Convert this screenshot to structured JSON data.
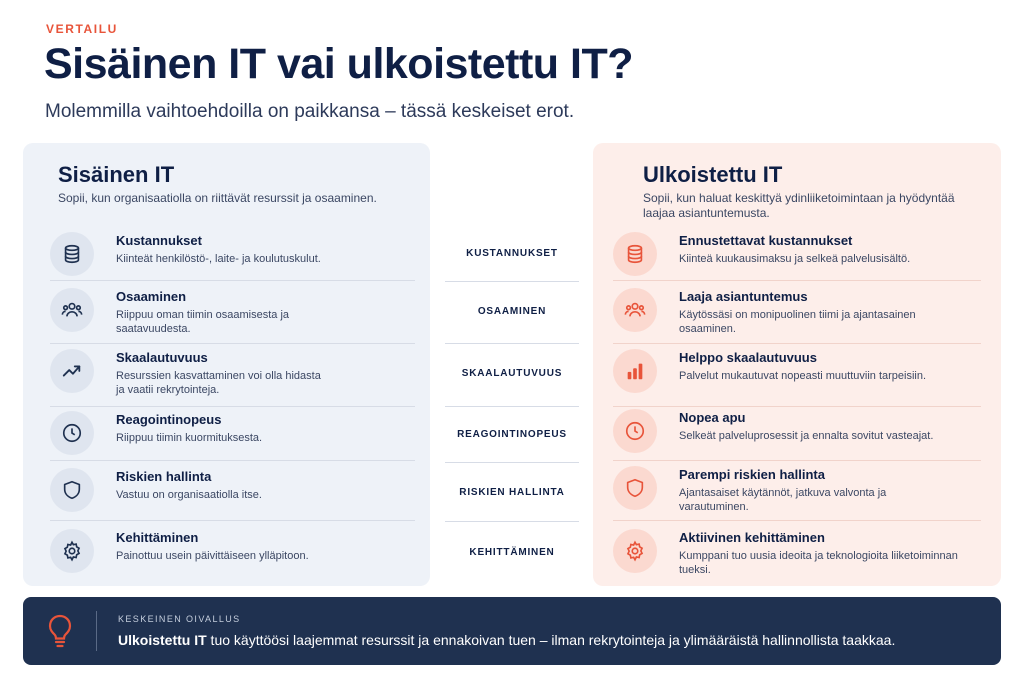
{
  "header": {
    "eyebrow": "VERTAILU",
    "title": "Sisäinen IT vai ulkoistettu IT?",
    "subtitle": "Molemmilla vaihtoehdoilla on paikkansa – tässä keskeiset erot."
  },
  "colors": {
    "accent": "#e8543a",
    "navy": "#0f1f45",
    "left_bg": "#eef2f8",
    "right_bg": "#fdeeea",
    "insight_bg": "#1f3150"
  },
  "left": {
    "title": "Sisäinen IT",
    "description": "Sopii, kun organisaatiolla on riittävät resurssit ja osaaminen.",
    "items": [
      {
        "icon": "database-icon",
        "title": "Kustannukset",
        "desc": "Kiinteät henkilöstö-, laite- ja koulutuskulut."
      },
      {
        "icon": "users-icon",
        "title": "Osaaminen",
        "desc": "Riippuu oman tiimin osaamisesta ja saatavuudesta."
      },
      {
        "icon": "trend-line-icon",
        "title": "Skaalautuvuus",
        "desc": "Resurssien kasvattaminen voi olla hidasta ja vaatii rekrytointeja."
      },
      {
        "icon": "clock-icon",
        "title": "Reagointinopeus",
        "desc": "Riippuu tiimin kuormituksesta."
      },
      {
        "icon": "shield-icon",
        "title": "Riskien hallinta",
        "desc": "Vastuu on organisaatiolla itse."
      },
      {
        "icon": "gear-icon",
        "title": "Kehittäminen",
        "desc": "Painottuu usein päivittäiseen ylläpitoon."
      }
    ]
  },
  "middle": {
    "labels": [
      "KUSTANNUKSET",
      "OSAAMINEN",
      "SKAALAUTUVUUS",
      "REAGOINTINOPEUS",
      "RISKIEN HALLINTA",
      "KEHITTÄMINEN"
    ]
  },
  "right": {
    "title": "Ulkoistettu IT",
    "description": "Sopii, kun haluat keskittyä ydinliiketoimintaan ja hyödyntää laajaa asiantuntemusta.",
    "items": [
      {
        "icon": "database-icon",
        "title": "Ennustettavat kustannukset",
        "desc": "Kiinteä kuukausimaksu ja selkeä palvelusisältö."
      },
      {
        "icon": "users-icon",
        "title": "Laaja asiantuntemus",
        "desc": "Käytössäsi on monipuolinen tiimi ja ajantasainen osaaminen."
      },
      {
        "icon": "bar-chart-icon",
        "title": "Helppo skaalautuvuus",
        "desc": "Palvelut mukautuvat nopeasti muuttuviin tarpeisiin."
      },
      {
        "icon": "clock-icon",
        "title": "Nopea apu",
        "desc": "Selkeät palveluprosessit ja ennalta sovitut vasteajat."
      },
      {
        "icon": "shield-icon",
        "title": "Parempi riskien hallinta",
        "desc": "Ajantasaiset käytännöt, jatkuva valvonta ja varautuminen."
      },
      {
        "icon": "gear-icon",
        "title": "Aktiivinen kehittäminen",
        "desc": "Kumppani tuo uusia ideoita ja teknologioita liiketoiminnan tueksi."
      }
    ]
  },
  "insight": {
    "label": "KESKEINEN OIVALLUS",
    "highlight": "Ulkoistettu IT",
    "text": " tuo käyttöösi laajemmat resurssit ja ennakoivan tuen – ilman rekrytointeja ja ylimääräistä hallinnollista taakkaa.",
    "icon": "lightbulb-icon"
  }
}
